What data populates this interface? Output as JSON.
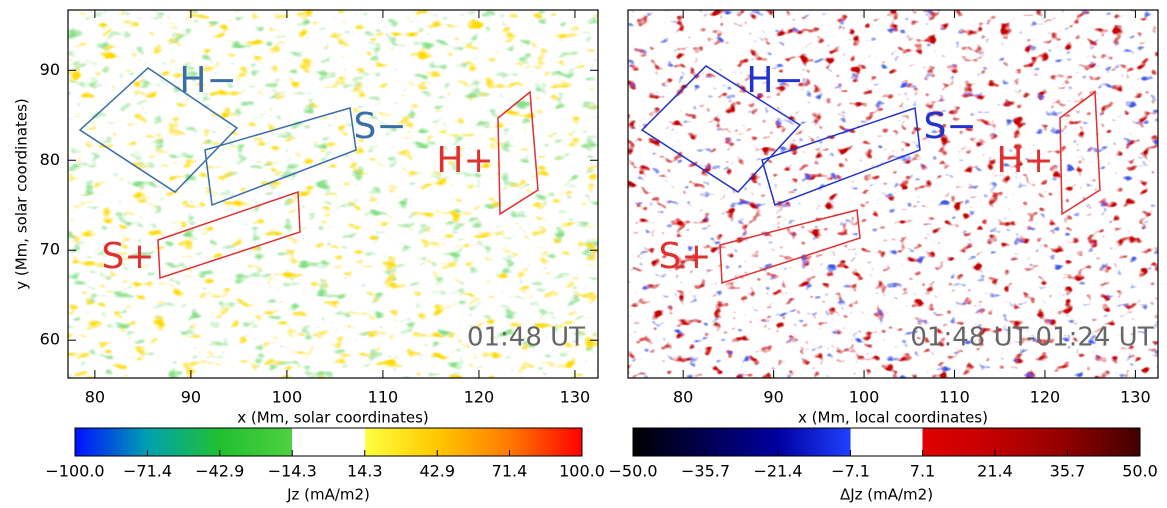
{
  "chart_data": [
    {
      "type": "heatmap",
      "xlabel": "x (Mm, solar coordinates)",
      "ylabel": "y (Mm, solar coordinates)",
      "xlim": [
        77.2,
        132.4
      ],
      "ylim": [
        55.8,
        96.7
      ],
      "xticks": [
        80,
        90,
        100,
        110,
        120,
        130
      ],
      "yticks": [
        60,
        70,
        80,
        90
      ],
      "annotations": [
        {
          "text": "H−",
          "color": "#3a6ea8"
        },
        {
          "text": "S−",
          "color": "#3a6ea8"
        },
        {
          "text": "H+",
          "color": "#e03030"
        },
        {
          "text": "S+",
          "color": "#e03030"
        }
      ],
      "timestamp": "01:48 UT",
      "colorbar": {
        "label": "Jz (mA/m2)",
        "lim": [
          -100,
          100
        ],
        "ticks": [
          {
            "value": -100,
            "label": "−100.0"
          },
          {
            "value": -71.4,
            "label": "−71.4"
          },
          {
            "value": -42.9,
            "label": "−42.9"
          },
          {
            "value": -14.3,
            "label": "−14.3"
          },
          {
            "value": 14.3,
            "label": "14.3"
          },
          {
            "value": 42.9,
            "label": "42.9"
          },
          {
            "value": 71.4,
            "label": "71.4"
          },
          {
            "value": 100,
            "label": "100.0"
          }
        ],
        "colors": [
          "#0010ff",
          "#00a0b0",
          "#20c030",
          "#50d040",
          "#ffff40",
          "#ffc800",
          "#ff7a00",
          "#ff0000"
        ],
        "center_white": true
      }
    },
    {
      "type": "heatmap",
      "xlabel": "x (Mm, local coordinates)",
      "xlim": [
        73.9,
        132.5
      ],
      "ylim": [
        55.8,
        96.7
      ],
      "xticks": [
        80,
        90,
        100,
        110,
        120,
        130
      ],
      "annotations": [
        {
          "text": "H−",
          "color": "#2233cc"
        },
        {
          "text": "S−",
          "color": "#2233cc"
        },
        {
          "text": "H+",
          "color": "#e03030"
        },
        {
          "text": "S+",
          "color": "#e03030"
        }
      ],
      "timestamp": "01:48 UT-01:24 UT",
      "colorbar": {
        "label": "ΔJz (mA/m2)",
        "lim": [
          -50,
          50
        ],
        "ticks": [
          {
            "value": -50,
            "label": "−50.0"
          },
          {
            "value": -35.7,
            "label": "−35.7"
          },
          {
            "value": -21.4,
            "label": "−21.4"
          },
          {
            "value": -7.1,
            "label": "−7.1"
          },
          {
            "value": 7.1,
            "label": "7.1"
          },
          {
            "value": 21.4,
            "label": "21.4"
          },
          {
            "value": 35.7,
            "label": "35.7"
          },
          {
            "value": 50,
            "label": "50.0"
          }
        ],
        "colors": [
          "#000000",
          "#000050",
          "#0000a0",
          "#2040ff",
          "#e00000",
          "#c00000",
          "#900000",
          "#400000"
        ],
        "center_white": true
      }
    }
  ]
}
